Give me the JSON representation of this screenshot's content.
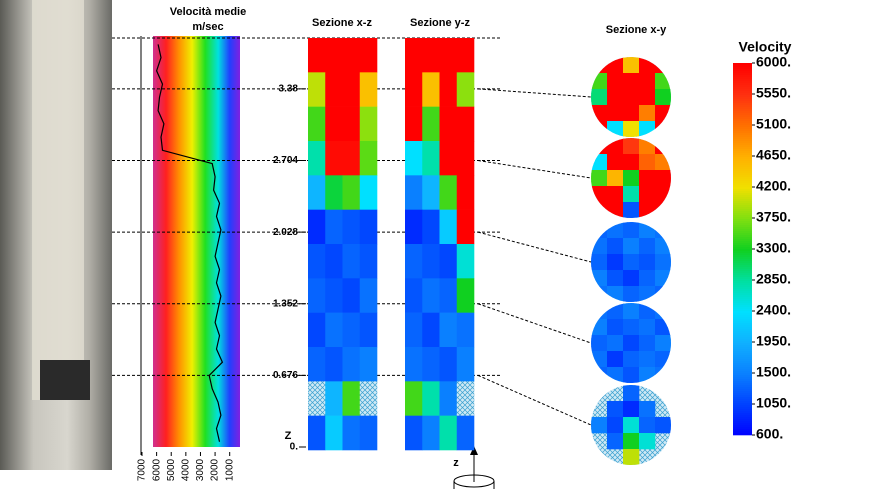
{
  "chart_data": {
    "type": "heatmap",
    "profile": {
      "title": "Velocità medie",
      "unit": "m/sec",
      "color": "#000000",
      "xlim": [
        7000,
        500
      ],
      "xticks": [
        7000,
        6000,
        5000,
        4000,
        3000,
        2000,
        1000
      ],
      "ylim": [
        0,
        3.86
      ],
      "yticks": [
        3.38,
        2.704,
        2.028,
        1.352,
        0.676,
        {
          "value": 0,
          "label": "0."
        }
      ],
      "depth_label": "Z",
      "depths": [
        3.8,
        3.675,
        3.55,
        3.425,
        3.3,
        3.175,
        3.05,
        2.925,
        2.8,
        2.675,
        2.55,
        2.425,
        2.3,
        2.175,
        2.05,
        1.925,
        1.8,
        1.675,
        1.55,
        1.425,
        1.3,
        1.175,
        1.05,
        0.925,
        0.8,
        0.675,
        0.55,
        0.425,
        0.3,
        0.175,
        0.05
      ],
      "velocities": [
        5900,
        5700,
        6000,
        5600,
        5800,
        5900,
        5500,
        5700,
        5600,
        2200,
        2000,
        2100,
        1700,
        1900,
        1600,
        1800,
        2000,
        1700,
        1900,
        1600,
        1800,
        2000,
        1700,
        1900,
        1500,
        2400,
        2200,
        1800,
        1600,
        1900,
        1700
      ]
    },
    "sections": [
      {
        "title": "Sezione x-z",
        "values": [
          [
            6000,
            6000,
            6000,
            6000
          ],
          [
            4000,
            6000,
            6000,
            4500
          ],
          [
            3500,
            6000,
            6000,
            3800
          ],
          [
            2800,
            5900,
            5900,
            3600
          ],
          [
            2000,
            3200,
            3500,
            2400
          ],
          [
            900,
            1300,
            1200,
            1100
          ],
          [
            1200,
            1100,
            1300,
            1200
          ],
          [
            1300,
            1200,
            1100,
            1400
          ],
          [
            1100,
            1400,
            1300,
            1200
          ],
          [
            1300,
            1200,
            1400,
            1500
          ],
          [
            null,
            2000,
            3500,
            null
          ],
          [
            1200,
            2200,
            1400,
            1300
          ]
        ]
      },
      {
        "title": "Sezione y-z",
        "values": [
          [
            6000,
            6000,
            6000,
            6000
          ],
          [
            6000,
            4500,
            6000,
            3800
          ],
          [
            6000,
            3500,
            6000,
            6000
          ],
          [
            2400,
            2800,
            6000,
            6000
          ],
          [
            1500,
            2000,
            3500,
            6000
          ],
          [
            900,
            1100,
            2200,
            6000
          ],
          [
            1300,
            1200,
            1100,
            2600
          ],
          [
            1200,
            1400,
            1300,
            3300
          ],
          [
            1300,
            1100,
            1500,
            1400
          ],
          [
            1400,
            1300,
            1200,
            1500
          ],
          [
            3500,
            2800,
            1500,
            null
          ],
          [
            1200,
            1500,
            2800,
            1300
          ]
        ]
      }
    ],
    "plan": {
      "title": "Sezione x-y",
      "slices": [
        [
          [
            6000,
            6000,
            4500,
            6000,
            6000
          ],
          [
            3500,
            6000,
            6000,
            6000,
            3500
          ],
          [
            3000,
            6000,
            6000,
            6000,
            3300
          ],
          [
            6000,
            6000,
            6000,
            5000,
            6000
          ],
          [
            6000,
            2400,
            4200,
            2400,
            6000
          ]
        ],
        [
          [
            6000,
            6000,
            5500,
            5000,
            6000
          ],
          [
            2400,
            6000,
            6000,
            5200,
            5000
          ],
          [
            3500,
            4600,
            3300,
            6000,
            6000
          ],
          [
            6000,
            6000,
            2800,
            6000,
            6000
          ],
          [
            6000,
            6000,
            1200,
            6000,
            6000
          ]
        ],
        [
          [
            1300,
            1400,
            1300,
            1500,
            1400
          ],
          [
            1400,
            1200,
            1500,
            1300,
            1500
          ],
          [
            1300,
            1000,
            1300,
            1200,
            1400
          ],
          [
            1500,
            1200,
            1000,
            1300,
            1500
          ],
          [
            1400,
            1500,
            1300,
            1400,
            1300
          ]
        ],
        [
          [
            1400,
            1300,
            1500,
            1300,
            1400
          ],
          [
            1500,
            1200,
            1300,
            1400,
            1200
          ],
          [
            1300,
            1400,
            1100,
            1300,
            1500
          ],
          [
            1400,
            1000,
            1300,
            1400,
            1300
          ],
          [
            1300,
            1400,
            1200,
            1500,
            1400
          ]
        ],
        [
          [
            null,
            null,
            1300,
            null,
            null
          ],
          [
            null,
            1200,
            900,
            1400,
            null
          ],
          [
            1500,
            1100,
            2600,
            1300,
            1200
          ],
          [
            null,
            1300,
            3300,
            2600,
            null
          ],
          [
            null,
            null,
            4000,
            null,
            null
          ]
        ]
      ]
    },
    "colorbar": {
      "title": "Velocity",
      "lim": [
        600,
        6000
      ],
      "ticks": [
        {
          "value": 6000,
          "label": "6000."
        },
        {
          "value": 5550,
          "label": "5550."
        },
        {
          "value": 5100,
          "label": "5100."
        },
        {
          "value": 4650,
          "label": "4650."
        },
        {
          "value": 4200,
          "label": "4200."
        },
        {
          "value": 3750,
          "label": "3750."
        },
        {
          "value": 3300,
          "label": "3300."
        },
        {
          "value": 2850,
          "label": "2850."
        },
        {
          "value": 2400,
          "label": "2400."
        },
        {
          "value": 1950,
          "label": "1950."
        },
        {
          "value": 1500,
          "label": "1500."
        },
        {
          "value": 1050,
          "label": "1050."
        },
        {
          "value": 600,
          "label": "600."
        }
      ],
      "colors": [
        "#ff0000",
        "#ff3010",
        "#ff7000",
        "#ffb000",
        "#f0e000",
        "#80e010",
        "#10d020",
        "#00e0a0",
        "#00e0ff",
        "#10b0ff",
        "#0a80ff",
        "#0040ff",
        "#0000ff"
      ]
    },
    "axis_label": "z"
  }
}
